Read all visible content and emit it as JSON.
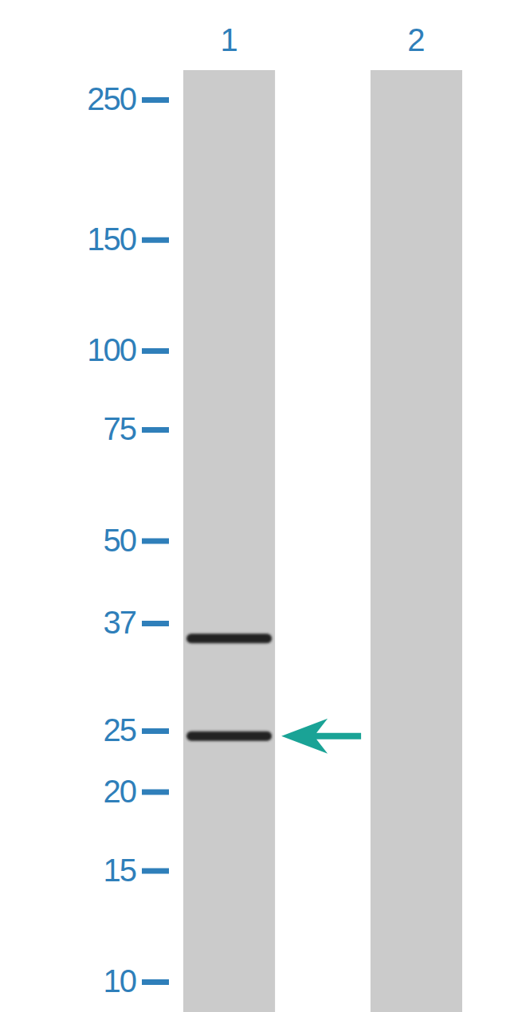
{
  "chart_data": {
    "type": "blot",
    "categories": [
      "1",
      "2"
    ],
    "values": [
      [
        35,
        24.5
      ],
      []
    ],
    "arrow": 24.5,
    "ylim": [
      10,
      250
    ],
    "yticks": [
      10,
      15,
      20,
      25,
      37,
      50,
      75,
      100,
      150,
      250
    ],
    "log": "y",
    "color": "#222222"
  }
}
